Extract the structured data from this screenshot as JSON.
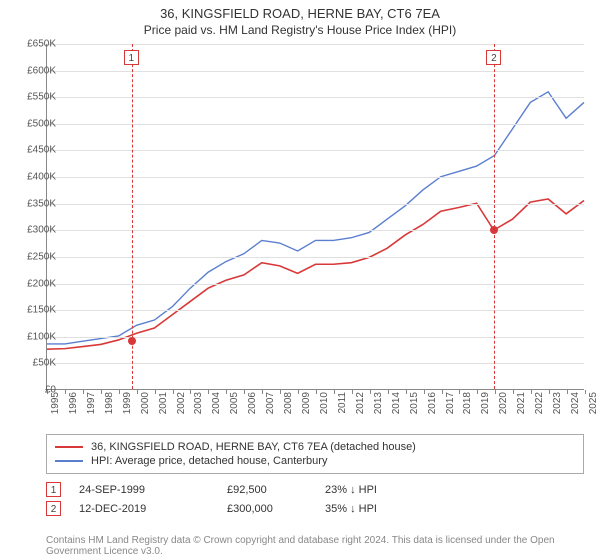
{
  "title": "36, KINGSFIELD ROAD, HERNE BAY, CT6 7EA",
  "subtitle": "Price paid vs. HM Land Registry's House Price Index (HPI)",
  "chart": {
    "type": "line",
    "ylim": [
      0,
      650000
    ],
    "ytick_step": 50000,
    "yticks": [
      "£0",
      "£50K",
      "£100K",
      "£150K",
      "£200K",
      "£250K",
      "£300K",
      "£350K",
      "£400K",
      "£450K",
      "£500K",
      "£550K",
      "£600K",
      "£650K"
    ],
    "xlim": [
      1995,
      2025
    ],
    "xticks": [
      1995,
      1996,
      1997,
      1998,
      1999,
      2000,
      2001,
      2002,
      2003,
      2004,
      2005,
      2006,
      2007,
      2008,
      2009,
      2010,
      2011,
      2012,
      2013,
      2014,
      2015,
      2016,
      2017,
      2018,
      2019,
      2020,
      2021,
      2022,
      2023,
      2024,
      2025
    ],
    "grid_color": "#e0e0e0",
    "background_color": "#ffffff",
    "series": [
      {
        "id": "hpi",
        "label": "HPI: Average price, detached house, Canterbury",
        "color": "#5b7fcf",
        "line_width": 1.4,
        "points": [
          [
            1995,
            85000
          ],
          [
            1996,
            85000
          ],
          [
            1997,
            90000
          ],
          [
            1998,
            95000
          ],
          [
            1999,
            100000
          ],
          [
            2000,
            120000
          ],
          [
            2001,
            130000
          ],
          [
            2002,
            155000
          ],
          [
            2003,
            190000
          ],
          [
            2004,
            220000
          ],
          [
            2005,
            240000
          ],
          [
            2006,
            255000
          ],
          [
            2007,
            280000
          ],
          [
            2008,
            275000
          ],
          [
            2009,
            260000
          ],
          [
            2010,
            280000
          ],
          [
            2011,
            280000
          ],
          [
            2012,
            285000
          ],
          [
            2013,
            295000
          ],
          [
            2014,
            320000
          ],
          [
            2015,
            345000
          ],
          [
            2016,
            375000
          ],
          [
            2017,
            400000
          ],
          [
            2018,
            410000
          ],
          [
            2019,
            420000
          ],
          [
            2020,
            440000
          ],
          [
            2021,
            490000
          ],
          [
            2022,
            540000
          ],
          [
            2023,
            560000
          ],
          [
            2024,
            510000
          ],
          [
            2025,
            540000
          ]
        ]
      },
      {
        "id": "property",
        "label": "36, KINGSFIELD ROAD, HERNE BAY, CT6 7EA (detached house)",
        "color": "#d93838",
        "line_width": 1.6,
        "points": [
          [
            1995,
            75000
          ],
          [
            1996,
            76000
          ],
          [
            1997,
            80000
          ],
          [
            1998,
            84000
          ],
          [
            1999,
            92500
          ],
          [
            2000,
            105000
          ],
          [
            2001,
            115000
          ],
          [
            2002,
            140000
          ],
          [
            2003,
            165000
          ],
          [
            2004,
            190000
          ],
          [
            2005,
            205000
          ],
          [
            2006,
            215000
          ],
          [
            2007,
            238000
          ],
          [
            2008,
            232000
          ],
          [
            2009,
            218000
          ],
          [
            2010,
            235000
          ],
          [
            2011,
            235000
          ],
          [
            2012,
            238000
          ],
          [
            2013,
            248000
          ],
          [
            2014,
            265000
          ],
          [
            2015,
            290000
          ],
          [
            2016,
            310000
          ],
          [
            2017,
            335000
          ],
          [
            2018,
            342000
          ],
          [
            2019,
            350000
          ],
          [
            2019.95,
            300000
          ],
          [
            2020,
            300000
          ],
          [
            2021,
            320000
          ],
          [
            2022,
            352000
          ],
          [
            2023,
            358000
          ],
          [
            2024,
            330000
          ],
          [
            2025,
            355000
          ]
        ]
      }
    ],
    "markers": [
      {
        "id": 1,
        "label": "1",
        "x": 1999.73,
        "y": 92500,
        "color": "#d93838"
      },
      {
        "id": 2,
        "label": "2",
        "x": 2019.95,
        "y": 300000,
        "color": "#d93838"
      }
    ]
  },
  "legend": {
    "items": [
      {
        "color": "#d93838",
        "label": "36, KINGSFIELD ROAD, HERNE BAY, CT6 7EA (detached house)"
      },
      {
        "color": "#5b7fcf",
        "label": "HPI: Average price, detached house, Canterbury"
      }
    ]
  },
  "sales": [
    {
      "badge": "1",
      "badge_color": "#d93838",
      "date": "24-SEP-1999",
      "price": "£92,500",
      "ratio": "23% ↓ HPI"
    },
    {
      "badge": "2",
      "badge_color": "#d93838",
      "date": "12-DEC-2019",
      "price": "£300,000",
      "ratio": "35% ↓ HPI"
    }
  ],
  "attribution": "Contains HM Land Registry data © Crown copyright and database right 2024. This data is licensed under the Open Government Licence v3.0."
}
